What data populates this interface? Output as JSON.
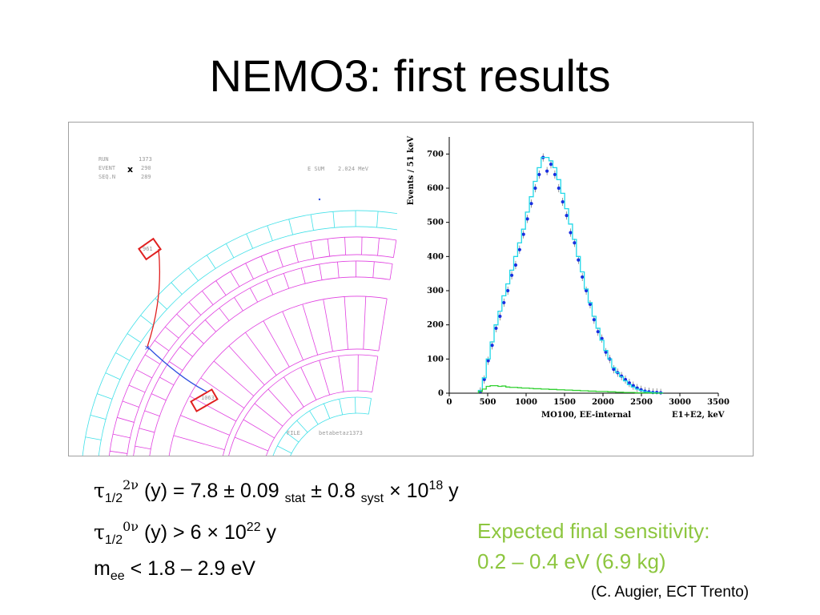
{
  "slide": {
    "title": "NEMO3: first results"
  },
  "event_display": {
    "run_label": "RUN",
    "run_value": "1373",
    "event_label": "EVENT",
    "event_value": "290",
    "seqn_label": "SEQ.N",
    "seqn_value": "289",
    "marker": "x",
    "esum_label": "E SUM",
    "esum_value": "2.024 MeV",
    "hit1_label": "961",
    "hit2_label": "1063",
    "file_label": "FILE",
    "file_value": "betabetaz1373",
    "colors": {
      "calorimeter": "#3fe0e8",
      "tracker": "#e040e0",
      "track_red": "#e02020",
      "track_blue": "#3050e0"
    }
  },
  "chart_data": {
    "type": "bar",
    "title": "",
    "xlabel_left": "MO100, EE-internal",
    "xlabel_right": "E1+E2, keV",
    "ylabel": "Events / 51 keV",
    "xlim": [
      0,
      3500
    ],
    "ylim": [
      0,
      750
    ],
    "xticks": [
      0,
      500,
      1000,
      1500,
      2000,
      2500,
      3000,
      3500
    ],
    "yticks": [
      0,
      100,
      200,
      300,
      400,
      500,
      600,
      700
    ],
    "bin_width": 51,
    "series": [
      {
        "style": "data-points",
        "color": "#1a2ee0",
        "x": [
          405,
          456,
          507,
          558,
          609,
          660,
          711,
          762,
          813,
          864,
          915,
          966,
          1017,
          1068,
          1119,
          1170,
          1221,
          1272,
          1323,
          1374,
          1425,
          1476,
          1527,
          1578,
          1629,
          1680,
          1731,
          1782,
          1833,
          1884,
          1935,
          1986,
          2037,
          2088,
          2139,
          2190,
          2241,
          2292,
          2343,
          2394,
          2445,
          2496,
          2547,
          2598,
          2649,
          2700,
          2751
        ],
        "y": [
          5,
          40,
          95,
          140,
          190,
          225,
          265,
          300,
          345,
          375,
          420,
          465,
          510,
          555,
          600,
          640,
          690,
          650,
          670,
          640,
          600,
          560,
          520,
          470,
          440,
          390,
          340,
          300,
          260,
          215,
          180,
          160,
          120,
          100,
          70,
          60,
          50,
          40,
          30,
          22,
          15,
          10,
          6,
          4,
          2,
          2,
          1
        ]
      },
      {
        "style": "histogram",
        "color": "#20d8e8",
        "x": [
          405,
          456,
          507,
          558,
          609,
          660,
          711,
          762,
          813,
          864,
          915,
          966,
          1017,
          1068,
          1119,
          1170,
          1221,
          1272,
          1323,
          1374,
          1425,
          1476,
          1527,
          1578,
          1629,
          1680,
          1731,
          1782,
          1833,
          1884,
          1935,
          1986,
          2037,
          2088,
          2139,
          2190,
          2241,
          2292,
          2343,
          2394,
          2445,
          2496,
          2547,
          2598,
          2649,
          2700,
          2751
        ],
        "y": [
          8,
          45,
          100,
          150,
          200,
          240,
          285,
          320,
          360,
          400,
          440,
          480,
          530,
          575,
          620,
          660,
          690,
          690,
          680,
          660,
          625,
          585,
          540,
          495,
          450,
          400,
          355,
          305,
          265,
          225,
          190,
          155,
          125,
          100,
          75,
          60,
          48,
          36,
          25,
          18,
          12,
          8,
          5,
          3,
          2,
          1,
          1
        ]
      },
      {
        "style": "histogram",
        "color": "#30d030",
        "x": [
          405,
          456,
          507,
          558,
          609,
          660,
          711,
          762,
          813,
          864,
          915,
          966,
          1017,
          1068,
          1119,
          1170,
          1221,
          1272,
          1323,
          1374,
          1425,
          1476,
          1527,
          1578,
          1629,
          1680,
          1731,
          1782,
          1833,
          1884,
          1935,
          1986,
          2037,
          2088,
          2139,
          2190,
          2241,
          2292,
          2343,
          2394,
          2445,
          2496,
          2547,
          2598,
          2649,
          2700,
          2751
        ],
        "y": [
          5,
          12,
          20,
          22,
          22,
          20,
          21,
          18,
          17,
          17,
          16,
          15,
          15,
          14,
          13,
          13,
          12,
          12,
          11,
          11,
          10,
          10,
          9,
          9,
          8,
          8,
          7,
          7,
          6,
          6,
          5,
          5,
          5,
          4,
          4,
          3,
          3,
          2,
          2,
          2,
          1,
          1,
          1,
          1,
          0,
          0,
          0
        ]
      }
    ]
  },
  "results": {
    "line1": {
      "tau": "τ",
      "sub": "1/2",
      "sup": "2ν",
      "main": " (y) = 7.8 ± 0.09 ",
      "stat": "stat",
      "pm": " ±  0.8 ",
      "syst": "syst",
      "times": "  ×  10",
      "exp": "18",
      "unit": " y"
    },
    "line2": {
      "tau": "τ",
      "sub": "1/2",
      "sup": "0ν",
      "main": " (y) > 6  ×  10",
      "exp": "22",
      "unit": " y"
    },
    "line3": {
      "m": "m",
      "sub": "ee",
      "rest": " < 1.8 – 2.9 eV"
    }
  },
  "expected": {
    "line1": "Expected final sensitivity:",
    "line2": "0.2 – 0.4 eV (6.9 kg)"
  },
  "credit": "(C. Augier, ECT Trento)"
}
